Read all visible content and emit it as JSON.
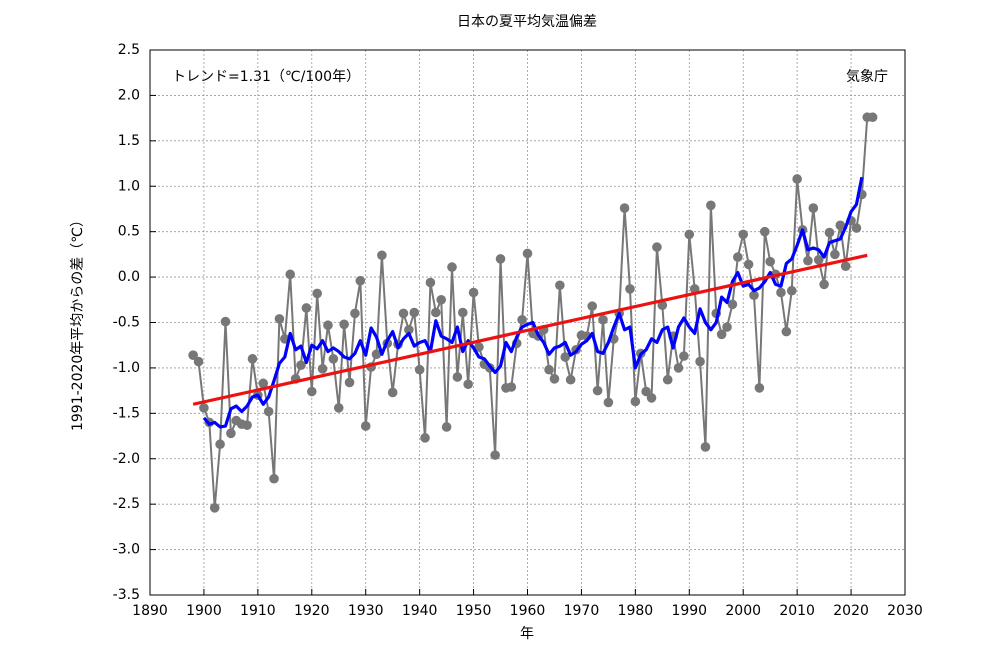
{
  "chart_data": {
    "type": "line",
    "title": "日本の夏平均気温偏差",
    "ylabel": "1991-2020年平均からの差（℃）",
    "xlabel": "年",
    "annotations": [
      "トレンド=1.31（℃/100年）",
      "気象庁"
    ],
    "grid": true,
    "xlim": [
      1890,
      2030
    ],
    "ylim": [
      -3.5,
      2.5
    ],
    "xticks": [
      1890,
      1900,
      1910,
      1920,
      1930,
      1940,
      1950,
      1960,
      1970,
      1980,
      1990,
      2000,
      2010,
      2020,
      2030
    ],
    "yticks": [
      -3.5,
      {
        "value": -3,
        "label": "-3.0"
      },
      -2.5,
      {
        "value": -2,
        "label": "-2.0"
      },
      -1.5,
      {
        "value": -1,
        "label": "-1.0"
      },
      -0.5,
      {
        "value": 0,
        "label": "0.0"
      },
      0.5,
      {
        "value": 1,
        "label": "1.0"
      },
      1.5,
      {
        "value": 2,
        "label": "2.0"
      },
      2.5
    ],
    "x": [
      1898,
      1899,
      1900,
      1901,
      1902,
      1903,
      1904,
      1905,
      1906,
      1907,
      1908,
      1909,
      1910,
      1911,
      1912,
      1913,
      1914,
      1915,
      1916,
      1917,
      1918,
      1919,
      1920,
      1921,
      1922,
      1923,
      1924,
      1925,
      1926,
      1927,
      1928,
      1929,
      1930,
      1931,
      1932,
      1933,
      1934,
      1935,
      1936,
      1937,
      1938,
      1939,
      1940,
      1941,
      1942,
      1943,
      1944,
      1945,
      1946,
      1947,
      1948,
      1949,
      1950,
      1951,
      1952,
      1953,
      1954,
      1955,
      1956,
      1957,
      1958,
      1959,
      1960,
      1961,
      1962,
      1963,
      1964,
      1965,
      1966,
      1967,
      1968,
      1969,
      1970,
      1971,
      1972,
      1973,
      1974,
      1975,
      1976,
      1977,
      1978,
      1979,
      1980,
      1981,
      1982,
      1983,
      1984,
      1985,
      1986,
      1987,
      1988,
      1989,
      1990,
      1991,
      1992,
      1993,
      1994,
      1995,
      1996,
      1997,
      1998,
      1999,
      2000,
      2001,
      2002,
      2003,
      2004,
      2005,
      2006,
      2007,
      2008,
      2009,
      2010,
      2011,
      2012,
      2013,
      2014,
      2015,
      2016,
      2017,
      2018,
      2019,
      2020,
      2021,
      2022,
      2023,
      2024
    ],
    "series": [
      {
        "color": "#777777",
        "markers": true,
        "values": [
          -0.86,
          -0.93,
          -1.44,
          -1.6,
          -2.54,
          -1.84,
          -0.49,
          -1.72,
          -1.58,
          -1.62,
          -1.63,
          -0.9,
          -1.3,
          -1.17,
          -1.48,
          -2.22,
          -0.46,
          -0.68,
          0.03,
          -1.12,
          -0.97,
          -0.34,
          -1.26,
          -0.18,
          -1.01,
          -0.53,
          -0.9,
          -1.44,
          -0.52,
          -1.16,
          -0.4,
          -0.04,
          -1.64,
          -0.99,
          -0.85,
          0.24,
          -0.73,
          -1.27,
          -0.74,
          -0.4,
          -0.58,
          -0.39,
          -1.02,
          -1.77,
          -0.06,
          -0.39,
          -0.25,
          -1.65,
          0.11,
          -1.1,
          -0.39,
          -1.18,
          -0.17,
          -0.77,
          -0.96,
          -1.0,
          -1.96,
          0.2,
          -1.22,
          -1.21,
          -0.73,
          -0.47,
          0.26,
          -0.62,
          -0.65,
          -0.58,
          -1.02,
          -1.12,
          -0.09,
          -0.88,
          -1.13,
          -0.8,
          -0.64,
          -0.65,
          -0.32,
          -1.25,
          -0.47,
          -1.38,
          -0.68,
          -0.4,
          0.76,
          -0.13,
          -1.37,
          -0.84,
          -1.26,
          -1.33,
          0.33,
          -0.31,
          -1.13,
          -0.65,
          -1.0,
          -0.87,
          0.47,
          -0.13,
          -0.93,
          -1.87,
          0.79,
          -0.4,
          -0.63,
          -0.55,
          -0.3,
          0.22,
          0.47,
          0.14,
          -0.2,
          -1.22,
          0.5,
          0.17,
          0.03,
          -0.17,
          -0.6,
          -0.15,
          1.08,
          0.52,
          0.18,
          0.76,
          0.19,
          -0.08,
          0.49,
          0.25,
          0.57,
          0.12,
          0.62,
          0.54,
          0.91,
          1.76,
          1.76
        ]
      },
      {
        "color": "#0000ff",
        "markers": false,
        "values": [
          null,
          null,
          -1.55,
          -1.62,
          -1.6,
          -1.65,
          -1.64,
          -1.45,
          -1.42,
          -1.48,
          -1.42,
          -1.32,
          -1.3,
          -1.4,
          -1.32,
          -1.14,
          -0.95,
          -0.88,
          -0.62,
          -0.8,
          -0.76,
          -0.94,
          -0.75,
          -0.79,
          -0.7,
          -0.82,
          -0.78,
          -0.82,
          -0.88,
          -0.9,
          -0.84,
          -0.7,
          -0.86,
          -0.56,
          -0.66,
          -0.85,
          -0.7,
          -0.6,
          -0.78,
          -0.68,
          -0.62,
          -0.76,
          -0.72,
          -0.7,
          -0.82,
          -0.48,
          -0.65,
          -0.68,
          -0.72,
          -0.55,
          -0.82,
          -0.7,
          -0.78,
          -0.88,
          -0.9,
          -0.98,
          -1.05,
          -0.98,
          -0.72,
          -0.82,
          -0.66,
          -0.55,
          -0.52,
          -0.5,
          -0.64,
          -0.72,
          -0.85,
          -0.78,
          -0.76,
          -0.72,
          -0.86,
          -0.82,
          -0.74,
          -0.7,
          -0.62,
          -0.82,
          -0.84,
          -0.72,
          -0.55,
          -0.4,
          -0.58,
          -0.55,
          -1.0,
          -0.85,
          -0.8,
          -0.68,
          -0.72,
          -0.58,
          -0.55,
          -0.78,
          -0.55,
          -0.45,
          -0.55,
          -0.62,
          -0.35,
          -0.5,
          -0.58,
          -0.5,
          -0.22,
          -0.28,
          -0.05,
          0.05,
          -0.1,
          -0.08,
          -0.15,
          -0.12,
          -0.05,
          0.05,
          -0.08,
          -0.1,
          0.15,
          0.2,
          0.35,
          0.52,
          0.3,
          0.32,
          0.3,
          0.22,
          0.38,
          0.4,
          0.42,
          0.55,
          0.72,
          0.8,
          1.1,
          null,
          null
        ]
      },
      {
        "color": "#ee1111",
        "markers": false,
        "x": [
          1898,
          2023
        ],
        "values": [
          -1.4,
          0.24
        ]
      }
    ]
  }
}
